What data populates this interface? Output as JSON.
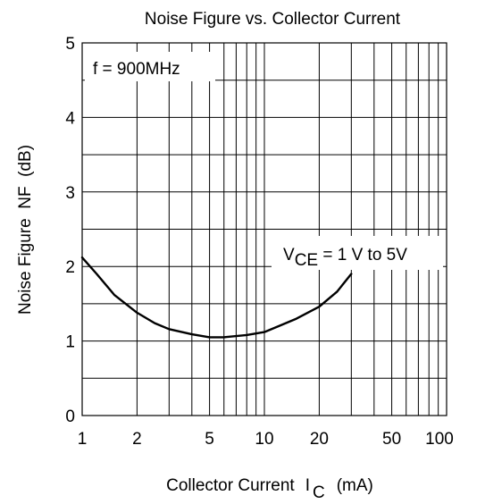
{
  "chart_data": {
    "type": "line",
    "title": "Noise Figure vs. Collector Current",
    "xlabel": {
      "prefix": "Collector Current",
      "symbol": "I",
      "subscript": "C",
      "unit": "(mA)"
    },
    "ylabel": "Noise Figure  NF  (dB)",
    "x_scale": "log",
    "xlim": [
      1,
      100
    ],
    "ylim": [
      0,
      5
    ],
    "x_ticks": [
      1,
      2,
      5,
      10,
      20,
      50,
      100
    ],
    "x_tick_labels": [
      "1",
      "2",
      "5",
      "10",
      "20",
      "50",
      "100"
    ],
    "y_ticks": [
      0,
      1,
      2,
      3,
      4,
      5
    ],
    "y_tick_labels": [
      "0",
      "1",
      "2",
      "3",
      "4",
      "5"
    ],
    "x_grid": [
      1,
      2,
      3,
      4,
      5,
      6,
      7,
      8,
      9,
      10,
      20,
      30,
      40,
      50,
      60,
      70,
      80,
      90,
      100
    ],
    "y_grid": [
      0,
      0.5,
      1,
      1.5,
      2,
      2.5,
      3,
      3.5,
      4,
      4.5,
      5
    ],
    "grid": true,
    "annotations": {
      "frequency": "f = 900MHz",
      "condition": {
        "symbol": "V",
        "subscript": "CE",
        "text": " = 1 V to 5V"
      }
    },
    "series": [
      {
        "x": [
          1,
          1.2,
          1.5,
          2,
          2.5,
          3,
          4,
          5,
          6,
          8,
          10,
          12,
          15,
          20,
          25,
          30
        ],
        "y": [
          2.12,
          1.9,
          1.62,
          1.38,
          1.24,
          1.16,
          1.09,
          1.05,
          1.05,
          1.08,
          1.12,
          1.2,
          1.3,
          1.46,
          1.66,
          1.9
        ]
      }
    ]
  }
}
